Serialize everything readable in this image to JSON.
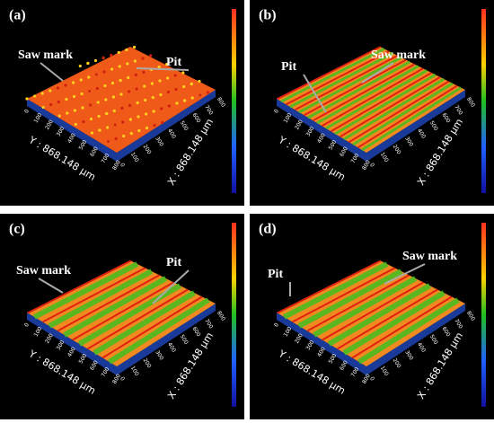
{
  "panels": [
    {
      "label": "(a)",
      "annotations": [
        "Saw mark",
        "Pit"
      ],
      "y_axis_label": "Y : 868.148 μm",
      "x_axis_label": "X : 868.148 μm"
    },
    {
      "label": "(b)",
      "annotations": [
        "Pit",
        "Saw mark"
      ],
      "y_axis_label": "Y : 868.148 μm",
      "x_axis_label": "X : 868.148 μm"
    },
    {
      "label": "(c)",
      "annotations": [
        "Saw mark",
        "Pit"
      ],
      "y_axis_label": "Y : 868.148 μm",
      "x_axis_label": "X : 868.148 μm"
    },
    {
      "label": "(d)",
      "annotations": [
        "Pit",
        "Saw mark"
      ],
      "y_axis_label": "Y : 868.148 μm",
      "x_axis_label": "X : 868.148 μm"
    }
  ],
  "ticks": [
    "0",
    "100",
    "200",
    "300",
    "400",
    "500",
    "600",
    "700",
    "800"
  ]
}
